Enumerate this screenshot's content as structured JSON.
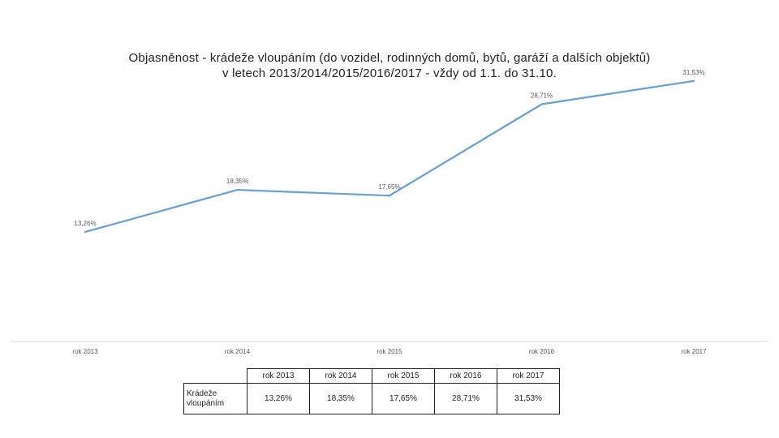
{
  "chart_data": {
    "type": "line",
    "title_lines": [
      "Objasněnost - krádeže vloupáním (do vozidel, rodinných domů, bytů, garáží a dalších objektů)",
      "v letech 2013/2014/2015/2016/2017 - vždy od 1.1. do 31.10."
    ],
    "categories": [
      "rok 2013",
      "rok 2014",
      "rok 2015",
      "rok 2016",
      "rok 2017"
    ],
    "series": [
      {
        "name": "Krádeže vloupáním",
        "values": [
          13.26,
          18.35,
          17.65,
          28.71,
          31.53
        ],
        "labels": [
          "13,26%",
          "18,35%",
          "17,65%",
          "28,71%",
          "31,53%"
        ]
      }
    ],
    "ylim": [
      0,
      32
    ],
    "line_color": "#6a9fcf",
    "grid": false
  },
  "table": {
    "row_label": "Krádeže vloupáním",
    "headers": [
      "rok 2013",
      "rok 2014",
      "rok 2015",
      "rok 2016",
      "rok 2017"
    ],
    "values": [
      "13,26%",
      "18,35%",
      "17,65%",
      "28,71%",
      "31,53%"
    ]
  }
}
